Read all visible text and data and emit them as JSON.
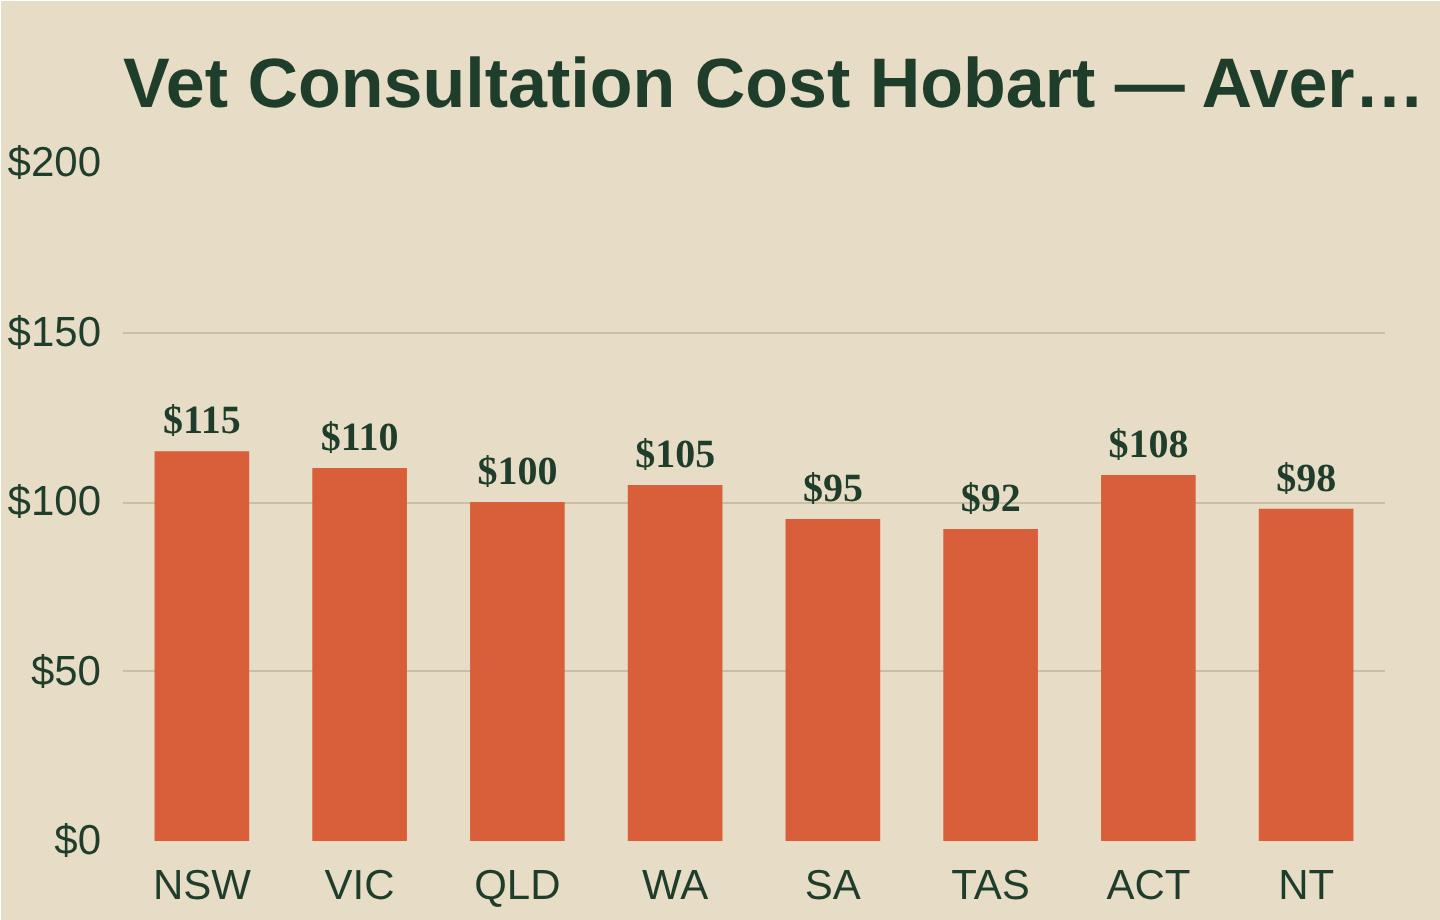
{
  "chart_data": {
    "type": "bar",
    "title": "Vet Consultation Cost Hobart — Aver…",
    "categories": [
      "NSW",
      "VIC",
      "QLD",
      "WA",
      "SA",
      "TAS",
      "ACT",
      "NT"
    ],
    "values": [
      115,
      110,
      100,
      105,
      95,
      92,
      108,
      98
    ],
    "value_labels": [
      "$115",
      "$110",
      "$100",
      "$105",
      "$95",
      "$92",
      "$108",
      "$98"
    ],
    "color": "#d95f3b",
    "ylim": [
      0,
      200
    ],
    "yticks": [
      {
        "value": 0,
        "label": "$0"
      },
      {
        "value": 50,
        "label": "$50"
      },
      {
        "value": 100,
        "label": "$100"
      },
      {
        "value": 150,
        "label": "$150"
      },
      {
        "value": 200,
        "label": "$200"
      }
    ],
    "grid": "y"
  }
}
